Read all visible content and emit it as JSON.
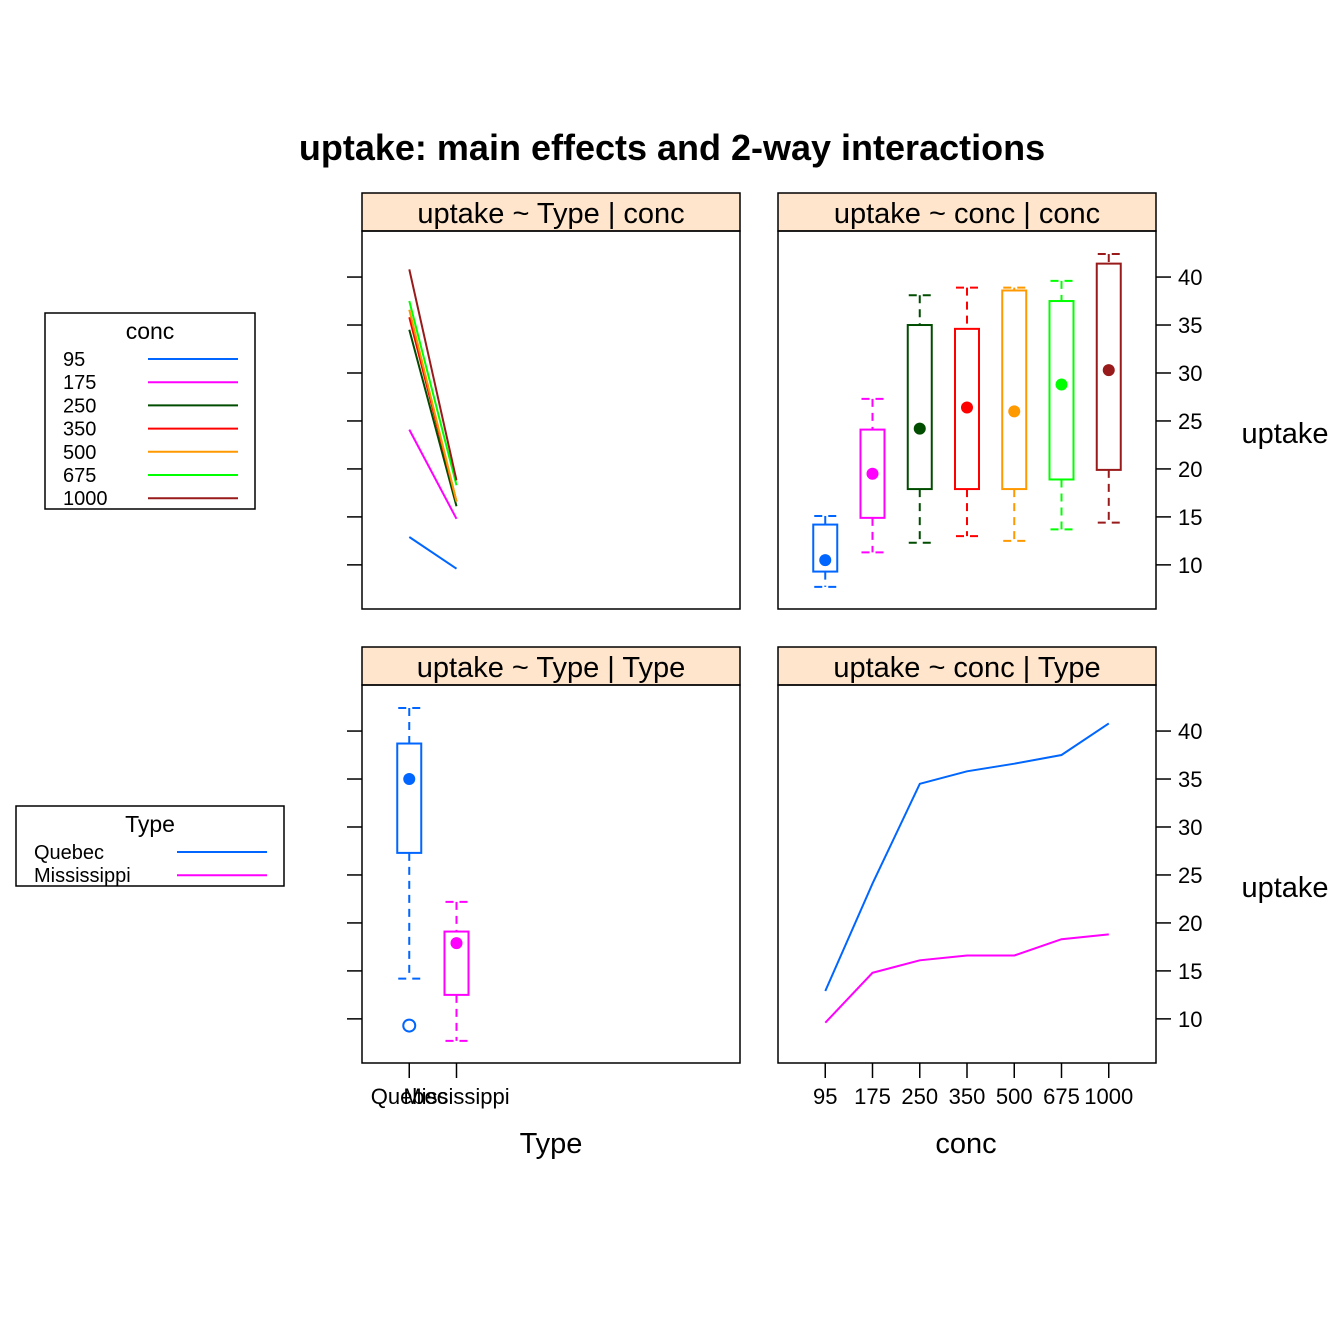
{
  "title": "uptake: main effects and 2-way interactions",
  "colors": {
    "strip_bg": "#ffe5cc",
    "conc": [
      "#0066ff",
      "#ff00ff",
      "#004d00",
      "#ff0000",
      "#ff9900",
      "#00ff00",
      "#991a1a"
    ],
    "Type": [
      "#0066ff",
      "#ff00ff"
    ]
  },
  "legends": {
    "conc": {
      "title": "conc",
      "entries": [
        "95",
        "175",
        "250",
        "350",
        "500",
        "675",
        "1000"
      ]
    },
    "type": {
      "title": "Type",
      "entries": [
        "Quebec",
        "Mississippi"
      ]
    }
  },
  "y_axis": {
    "label": "uptake",
    "ticks": [
      10,
      15,
      20,
      25,
      30,
      35,
      40
    ],
    "ylim": [
      5.4,
      44.8
    ]
  },
  "x_axes": {
    "type": {
      "label": "Type",
      "ticks": [
        "Quebec",
        "Mississippi"
      ]
    },
    "conc": {
      "label": "conc",
      "ticks": [
        "95",
        "175",
        "250",
        "350",
        "500",
        "675",
        "1000"
      ]
    }
  },
  "chart_data": [
    {
      "panel": "uptake ~ Type | conc",
      "type": "line",
      "categories": [
        "Quebec",
        "Mississippi"
      ],
      "series": [
        {
          "name": "95",
          "values": [
            12.9,
            9.6
          ]
        },
        {
          "name": "175",
          "values": [
            24.1,
            14.8
          ]
        },
        {
          "name": "250",
          "values": [
            34.5,
            16.1
          ]
        },
        {
          "name": "350",
          "values": [
            35.8,
            16.6
          ]
        },
        {
          "name": "500",
          "values": [
            36.6,
            16.6
          ]
        },
        {
          "name": "675",
          "values": [
            37.5,
            18.3
          ]
        },
        {
          "name": "1000",
          "values": [
            40.8,
            18.8
          ]
        }
      ]
    },
    {
      "panel": "uptake ~ conc | conc",
      "type": "box",
      "categories": [
        "95",
        "175",
        "250",
        "350",
        "500",
        "675",
        "1000"
      ],
      "boxes": [
        {
          "low": 7.7,
          "q1": 9.3,
          "median": 10.5,
          "q3": 14.2,
          "high": 15.1
        },
        {
          "low": 11.3,
          "q1": 14.9,
          "median": 19.5,
          "q3": 24.1,
          "high": 27.3
        },
        {
          "low": 12.3,
          "q1": 17.9,
          "median": 24.2,
          "q3": 35.0,
          "high": 38.1
        },
        {
          "low": 13.0,
          "q1": 17.9,
          "median": 26.4,
          "q3": 34.6,
          "high": 38.9
        },
        {
          "low": 12.5,
          "q1": 17.9,
          "median": 26.0,
          "q3": 38.6,
          "high": 38.9
        },
        {
          "low": 13.7,
          "q1": 18.9,
          "median": 28.8,
          "q3": 37.5,
          "high": 39.6
        },
        {
          "low": 14.4,
          "q1": 19.9,
          "median": 30.3,
          "q3": 41.4,
          "high": 42.4
        }
      ]
    },
    {
      "panel": "uptake ~ Type | Type",
      "type": "box",
      "categories": [
        "Quebec",
        "Mississippi"
      ],
      "boxes": [
        {
          "low": 14.2,
          "q1": 27.3,
          "median": 35.0,
          "q3": 38.7,
          "high": 42.4,
          "outliers": [
            9.3
          ]
        },
        {
          "low": 7.7,
          "q1": 12.5,
          "median": 17.9,
          "q3": 19.1,
          "high": 22.2,
          "outliers": []
        }
      ]
    },
    {
      "panel": "uptake ~ conc | Type",
      "type": "line",
      "categories": [
        "95",
        "175",
        "250",
        "350",
        "500",
        "675",
        "1000"
      ],
      "series": [
        {
          "name": "Quebec",
          "values": [
            12.9,
            24.1,
            34.5,
            35.8,
            36.6,
            37.5,
            40.8
          ]
        },
        {
          "name": "Mississippi",
          "values": [
            9.6,
            14.8,
            16.1,
            16.6,
            16.6,
            18.3,
            18.8
          ]
        }
      ]
    }
  ]
}
